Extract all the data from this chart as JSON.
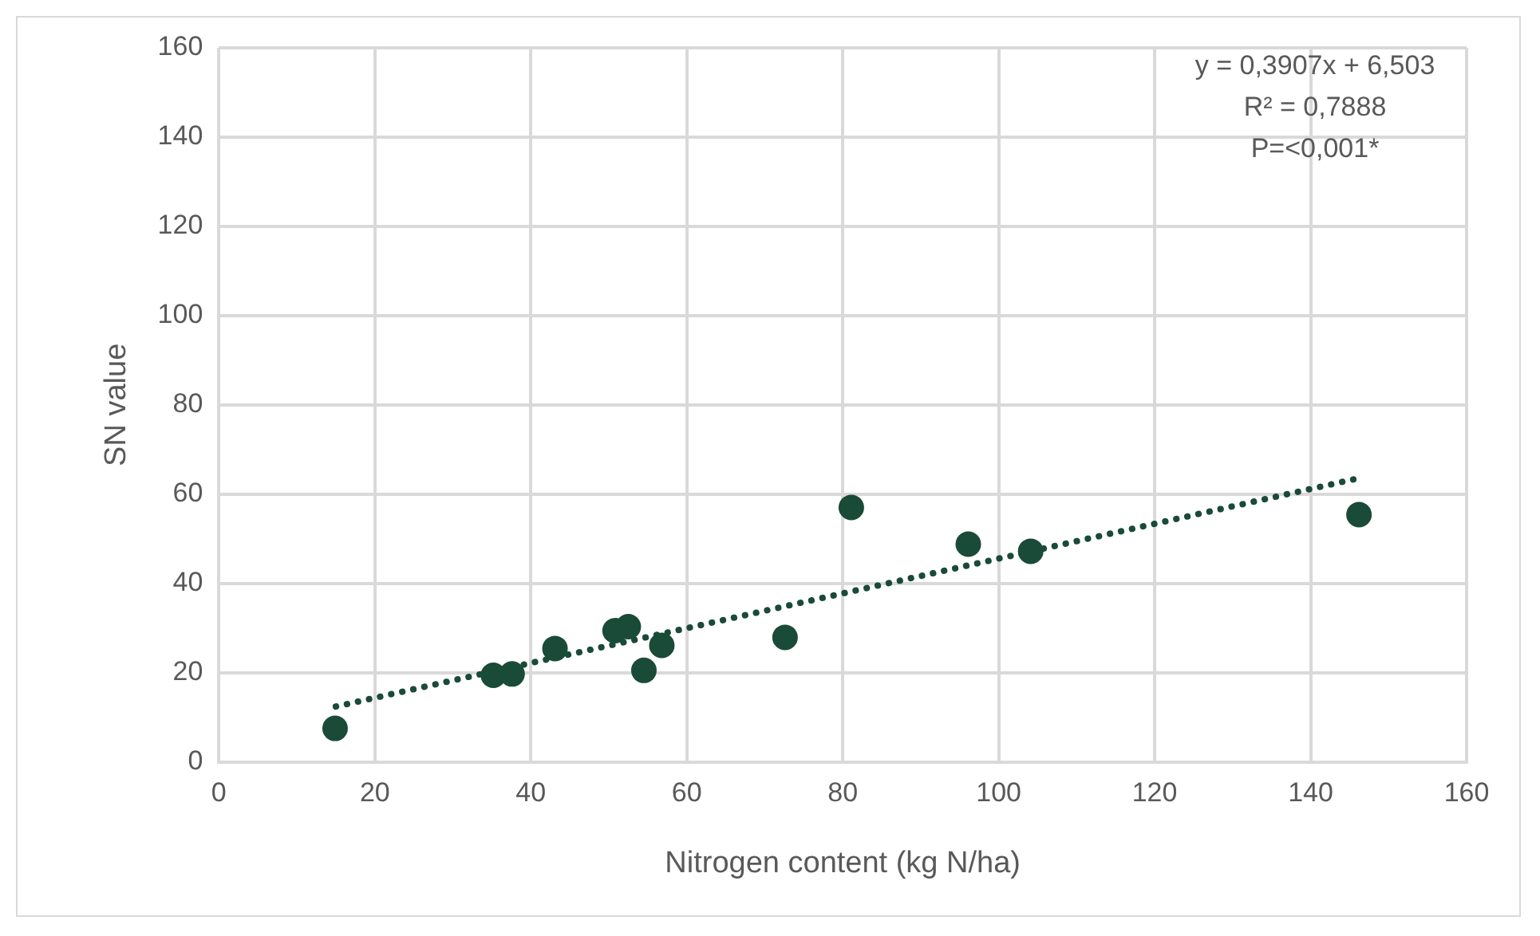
{
  "chart_data": {
    "type": "scatter",
    "xlabel": "Nitrogen content (kg N/ha)",
    "ylabel": "SN value",
    "xlim": [
      0,
      160
    ],
    "xticks": [
      0,
      20,
      40,
      60,
      80,
      100,
      120,
      140,
      160
    ],
    "ylim": [
      0,
      160
    ],
    "yticks": [
      0,
      20,
      40,
      60,
      80,
      100,
      120,
      140,
      160
    ],
    "grid": true,
    "legend": false,
    "marker": "circle",
    "series": [
      {
        "color": "#1a4a38",
        "x": [
          14.9,
          35.2,
          37.6,
          43.1,
          50.8,
          52.5,
          54.5,
          56.8,
          72.6,
          81.1,
          96.1,
          104.1,
          146.2
        ],
        "values": [
          7.5,
          19.4,
          19.7,
          25.4,
          29.4,
          30.3,
          20.5,
          26.1,
          27.9,
          57.0,
          48.8,
          47.2,
          55.4
        ]
      },
      {
        "type": "line",
        "line_style": "dotted",
        "marker": "none",
        "color": "#1a4a38",
        "x": [
          15,
          145.5
        ],
        "values": [
          12.4,
          63.3
        ]
      }
    ],
    "annotations": [
      "y = 0,3907x + 6,503",
      "R² = 0,7888",
      "P=<0,001*"
    ]
  }
}
